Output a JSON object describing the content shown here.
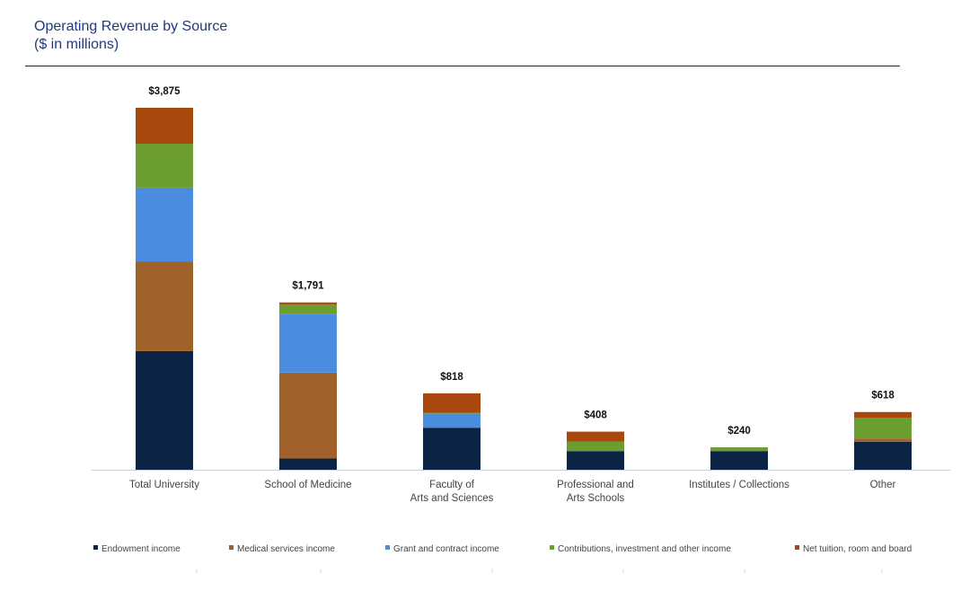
{
  "title": {
    "line1": "Operating Revenue by Source",
    "line2": "($ in millions)"
  },
  "chart_data": {
    "type": "bar",
    "stacked": true,
    "title": "Operating Revenue by Source",
    "subtitle": "($ in millions)",
    "categories": [
      [
        "Total University"
      ],
      [
        "School of Medicine"
      ],
      [
        "Faculty of",
        "Arts and Sciences"
      ],
      [
        "Professional and",
        "Arts Schools"
      ],
      [
        "Institutes / Collections"
      ],
      [
        "Other"
      ]
    ],
    "totals_labels": [
      "$3,875",
      "$1,791",
      "$818",
      "$408",
      "$240",
      "$618"
    ],
    "totals": [
      3875,
      1791,
      818,
      408,
      240,
      618
    ],
    "series": [
      {
        "name": "Endowment income",
        "color": "#0b2344",
        "values": [
          1270,
          120,
          450,
          200,
          200,
          300
        ]
      },
      {
        "name": "Medical services income",
        "color": "#a0622a",
        "values": [
          960,
          920,
          0,
          0,
          0,
          35
        ]
      },
      {
        "name": "Grant and contract income",
        "color": "#4a8de0",
        "values": [
          790,
          630,
          150,
          0,
          0,
          0
        ]
      },
      {
        "name": "Contributions, investment and other income",
        "color": "#6b9e2e",
        "values": [
          470,
          100,
          10,
          100,
          40,
          223
        ]
      },
      {
        "name": "Net tuition, room and board",
        "color": "#a8480e",
        "values": [
          385,
          21,
          208,
          108,
          0,
          60
        ]
      }
    ],
    "ylim": [
      0,
      4100
    ],
    "grid": false,
    "legend_position": "bottom"
  }
}
